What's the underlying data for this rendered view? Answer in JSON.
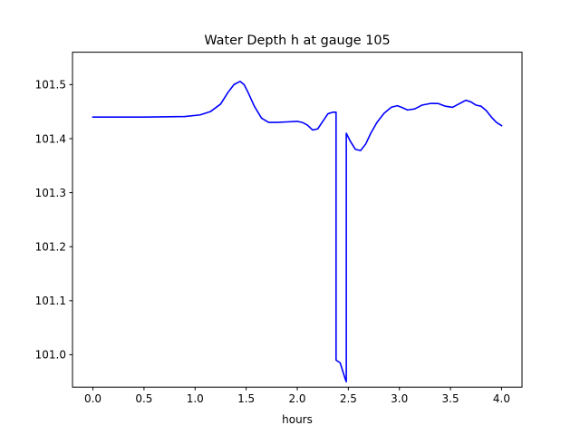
{
  "chart_data": {
    "type": "line",
    "title": "Water Depth h at gauge 105",
    "xlabel": "hours",
    "ylabel": "",
    "xlim": [
      -0.2,
      4.2
    ],
    "ylim": [
      100.94,
      101.56
    ],
    "xticks": [
      0.0,
      0.5,
      1.0,
      1.5,
      2.0,
      2.5,
      3.0,
      3.5,
      4.0
    ],
    "xtick_labels": [
      "0.0",
      "0.5",
      "1.0",
      "1.5",
      "2.0",
      "2.5",
      "3.0",
      "3.5",
      "4.0"
    ],
    "yticks": [
      101.0,
      101.1,
      101.2,
      101.3,
      101.4,
      101.5
    ],
    "ytick_labels": [
      "101.0",
      "101.1",
      "101.2",
      "101.3",
      "101.4",
      "101.5"
    ],
    "grid": false,
    "series": [
      {
        "color": "#0000ff",
        "x": [
          0.0,
          0.5,
          0.9,
          1.05,
          1.15,
          1.25,
          1.32,
          1.38,
          1.44,
          1.48,
          1.52,
          1.58,
          1.65,
          1.72,
          1.8,
          1.9,
          2.0,
          2.05,
          2.1,
          2.15,
          2.2,
          2.25,
          2.3,
          2.35,
          2.38,
          2.38,
          2.42,
          2.47,
          2.48,
          2.48,
          2.52,
          2.57,
          2.62,
          2.67,
          2.72,
          2.78,
          2.85,
          2.92,
          2.98,
          3.02,
          3.08,
          3.15,
          3.22,
          3.3,
          3.38,
          3.45,
          3.52,
          3.58,
          3.65,
          3.7,
          3.75,
          3.8,
          3.85,
          3.9,
          3.95,
          4.0
        ],
        "y": [
          101.44,
          101.44,
          101.441,
          101.444,
          101.45,
          101.464,
          101.485,
          101.5,
          101.506,
          101.5,
          101.485,
          101.46,
          101.438,
          101.43,
          101.43,
          101.431,
          101.432,
          101.43,
          101.425,
          101.416,
          101.418,
          101.432,
          101.446,
          101.449,
          101.449,
          100.99,
          100.985,
          100.955,
          100.95,
          101.41,
          101.395,
          101.38,
          101.378,
          101.39,
          101.41,
          101.43,
          101.447,
          101.458,
          101.461,
          101.458,
          101.453,
          101.455,
          101.462,
          101.465,
          101.465,
          101.46,
          101.458,
          101.464,
          101.471,
          101.468,
          101.462,
          101.46,
          101.452,
          101.44,
          101.43,
          101.424
        ]
      }
    ]
  }
}
